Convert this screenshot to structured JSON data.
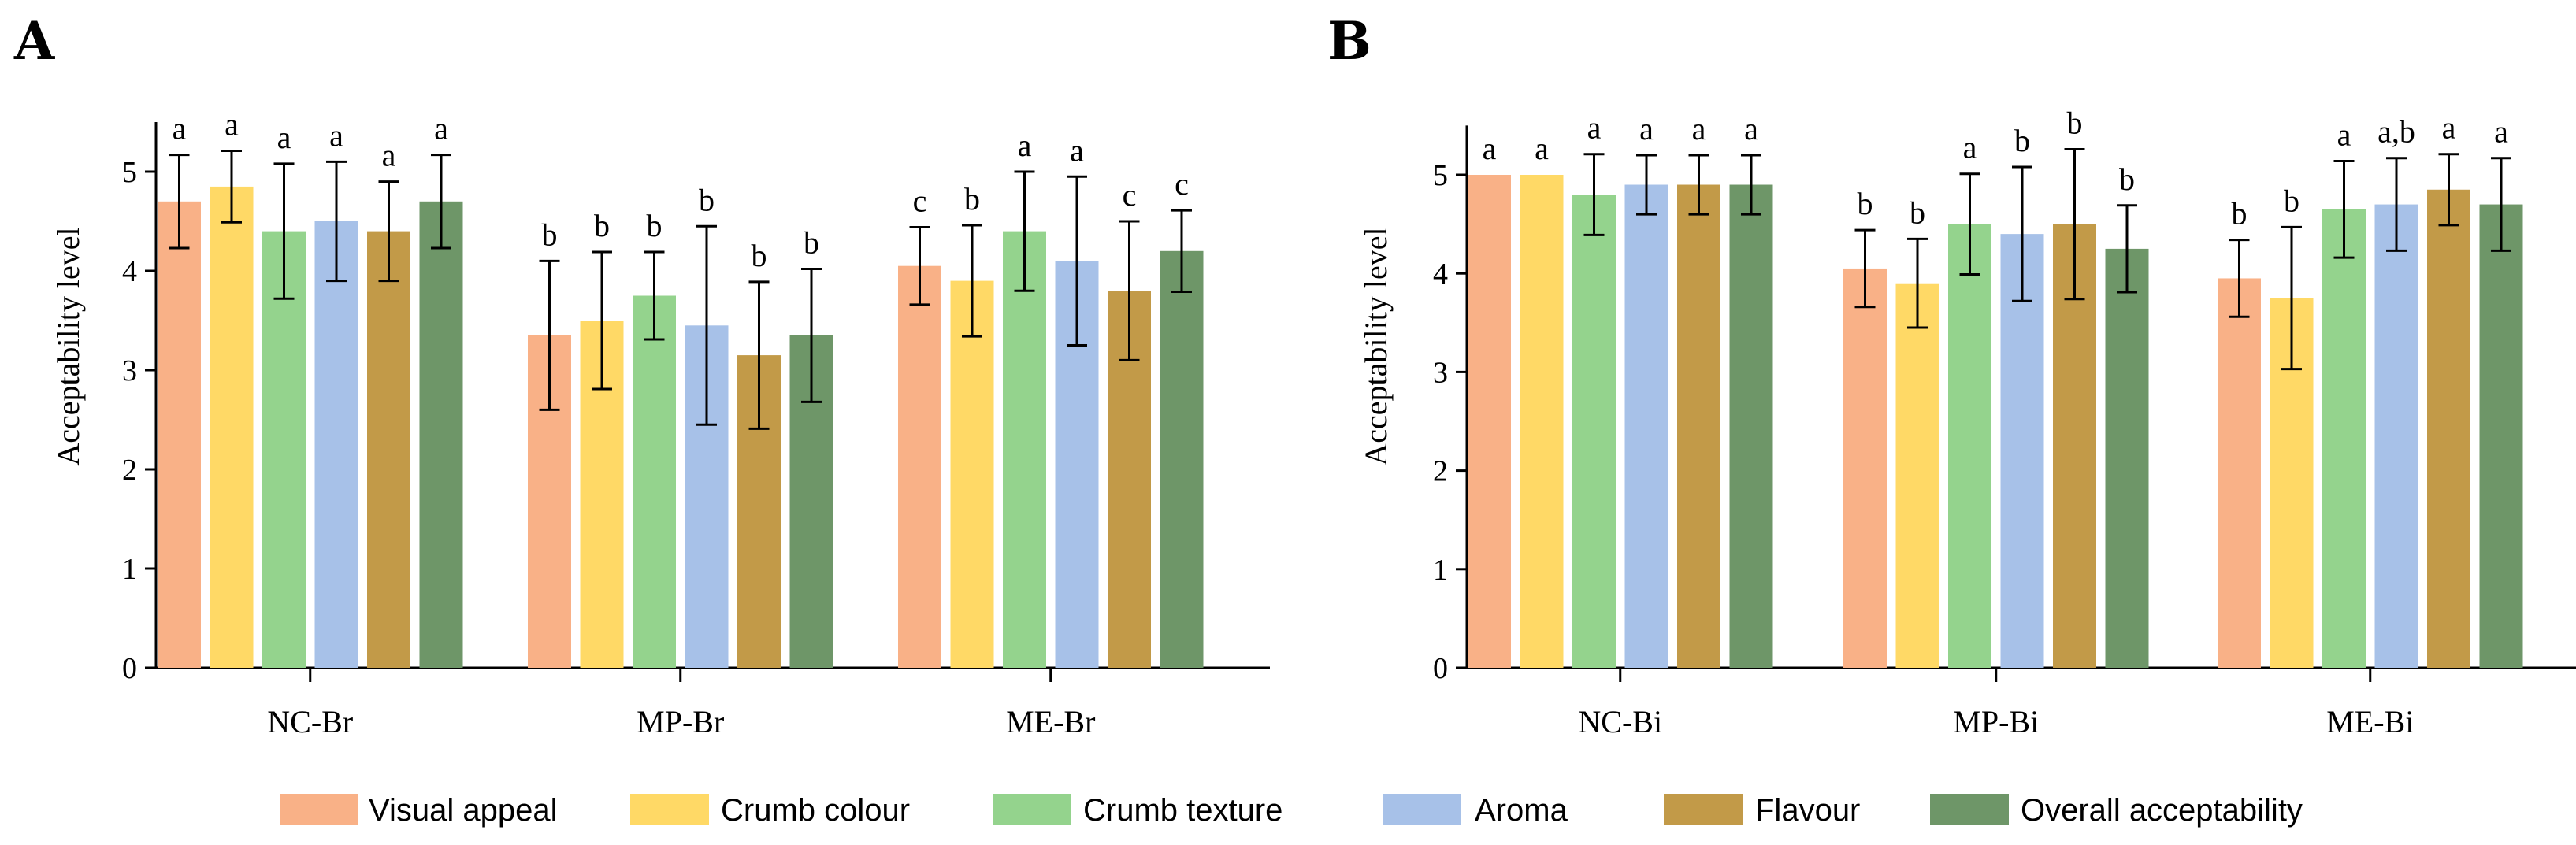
{
  "chart_data": [
    {
      "type": "bar",
      "panel": "A",
      "title": "",
      "xlabel": "",
      "ylabel": "Acceptability level",
      "ylim": [
        0,
        5.5
      ],
      "yticks": [
        0,
        1,
        2,
        3,
        4,
        5
      ],
      "categories": [
        "NC-Br",
        "MP-Br",
        "ME-Br"
      ],
      "series": [
        {
          "name": "Visual appeal",
          "values": [
            4.7,
            3.35,
            4.05
          ],
          "errors": [
            0.47,
            0.75,
            0.39
          ],
          "labels": [
            "a",
            "b",
            "c"
          ]
        },
        {
          "name": "Crumb colour",
          "values": [
            4.85,
            3.5,
            3.9
          ],
          "errors": [
            0.36,
            0.69,
            0.56
          ],
          "labels": [
            "a",
            "b",
            "b"
          ]
        },
        {
          "name": "Crumb texture",
          "values": [
            4.4,
            3.75,
            4.4
          ],
          "errors": [
            0.68,
            0.44,
            0.6
          ],
          "labels": [
            "a",
            "b",
            "a"
          ]
        },
        {
          "name": "Aroma",
          "values": [
            4.5,
            3.45,
            4.1
          ],
          "errors": [
            0.6,
            1.0,
            0.85
          ],
          "labels": [
            "a",
            "b",
            "a"
          ]
        },
        {
          "name": "Flavour",
          "values": [
            4.4,
            3.15,
            3.8
          ],
          "errors": [
            0.5,
            0.74,
            0.7
          ],
          "labels": [
            "a",
            "b",
            "c"
          ]
        },
        {
          "name": "Overall acceptability",
          "values": [
            4.7,
            3.35,
            4.2
          ],
          "errors": [
            0.47,
            0.67,
            0.41
          ],
          "labels": [
            "a",
            "b",
            "c"
          ]
        }
      ]
    },
    {
      "type": "bar",
      "panel": "B",
      "title": "",
      "xlabel": "",
      "ylabel": "Acceptability level",
      "ylim": [
        0,
        5.5
      ],
      "yticks": [
        0,
        1,
        2,
        3,
        4,
        5
      ],
      "categories": [
        "NC-Bi",
        "MP-Bi",
        "ME-Bi"
      ],
      "series": [
        {
          "name": "Visual appeal",
          "values": [
            5.0,
            4.05,
            3.95
          ],
          "errors": [
            0,
            0.39,
            0.39
          ],
          "labels": [
            "a",
            "b",
            "b"
          ]
        },
        {
          "name": "Crumb colour",
          "values": [
            5.0,
            3.9,
            3.75
          ],
          "errors": [
            0,
            0.45,
            0.72
          ],
          "labels": [
            "a",
            "b",
            "b"
          ]
        },
        {
          "name": "Crumb texture",
          "values": [
            4.8,
            4.5,
            4.65
          ],
          "errors": [
            0.41,
            0.51,
            0.49
          ],
          "labels": [
            "a",
            "a",
            "a"
          ]
        },
        {
          "name": "Aroma",
          "values": [
            4.9,
            4.4,
            4.7
          ],
          "errors": [
            0.3,
            0.68,
            0.47
          ],
          "labels": [
            "a",
            "b",
            "a,b"
          ]
        },
        {
          "name": "Flavour",
          "values": [
            4.9,
            4.5,
            4.85
          ],
          "errors": [
            0.3,
            0.76,
            0.36
          ],
          "labels": [
            "a",
            "b",
            "a"
          ]
        },
        {
          "name": "Overall acceptability",
          "values": [
            4.9,
            4.25,
            4.7
          ],
          "errors": [
            0.3,
            0.44,
            0.47
          ],
          "labels": [
            "a",
            "b",
            "a"
          ]
        }
      ]
    }
  ],
  "legend": {
    "position": "bottom",
    "items": [
      "Visual appeal",
      "Crumb colour",
      "Crumb texture",
      "Aroma",
      "Flavour",
      "Overall acceptability"
    ]
  },
  "colors": [
    "#F9B187",
    "#FFD966",
    "#94D38D",
    "#A7C1E8",
    "#C29A48",
    "#6E9668"
  ]
}
